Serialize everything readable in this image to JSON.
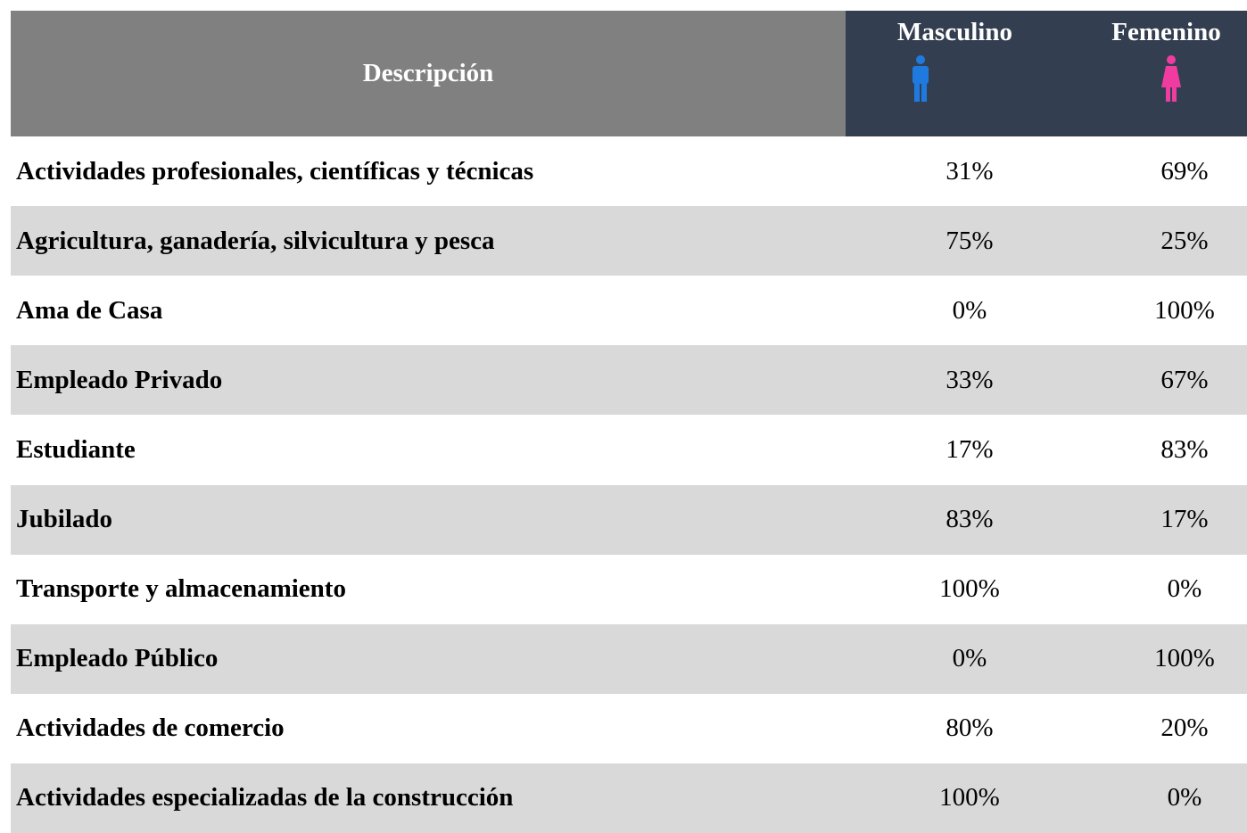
{
  "header": {
    "description": "Descripción",
    "male": "Masculino",
    "female": "Femenino"
  },
  "table": {
    "rows": [
      [
        "Actividades profesionales, científicas y técnicas",
        "31%",
        "69%"
      ],
      [
        "Agricultura, ganadería, silvicultura y pesca",
        "75%",
        "25%"
      ],
      [
        "Ama de Casa",
        "0%",
        "100%"
      ],
      [
        "Empleado Privado",
        "33%",
        "67%"
      ],
      [
        "Estudiante",
        "17%",
        "83%"
      ],
      [
        "Jubilado",
        "83%",
        "17%"
      ],
      [
        "Transporte y almacenamiento",
        "100%",
        "0%"
      ],
      [
        "Empleado Público",
        "0%",
        "100%"
      ],
      [
        "Actividades de comercio",
        "80%",
        "20%"
      ],
      [
        "Actividades especializadas de la construcción",
        "100%",
        "0%"
      ]
    ]
  }
}
